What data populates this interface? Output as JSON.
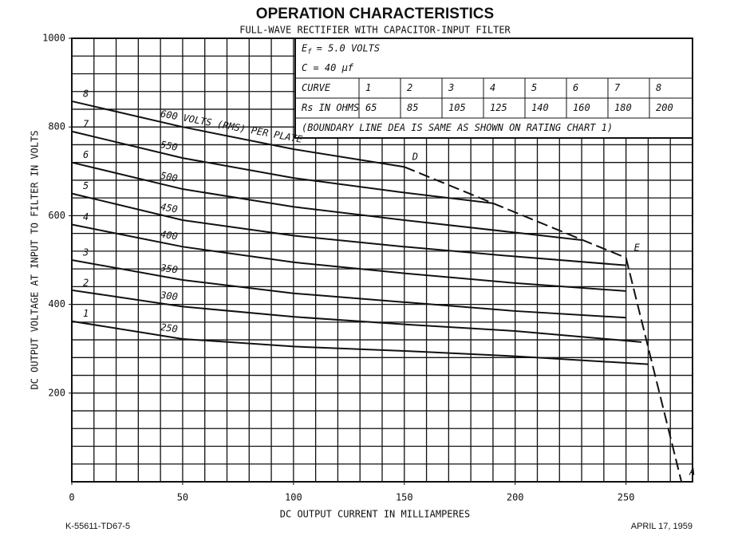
{
  "chart_data": {
    "type": "line",
    "title": "OPERATION CHARACTERISTICS",
    "subtitle": "FULL-WAVE RECTIFIER WITH CAPACITOR-INPUT FILTER",
    "x_label": "DC OUTPUT CURRENT IN MILLIAMPERES",
    "y_label": "DC OUTPUT VOLTAGE AT INPUT TO FILTER IN VOLTS",
    "footer_left": "K-55611-TD67-5",
    "footer_right": "APRIL 17, 1959",
    "xlim": [
      0,
      280
    ],
    "ylim": [
      0,
      1000
    ],
    "xticks": [
      0,
      50,
      100,
      150,
      200,
      250
    ],
    "yticks": [
      200,
      400,
      600,
      800,
      1000
    ],
    "x_grid_step": 10,
    "y_grid_step": 40,
    "grid": true,
    "color": "#111111",
    "series": [
      {
        "name": "600 VOLTS (RMS) PER PLATE",
        "curve": "8",
        "x": [
          0,
          50,
          100,
          150
        ],
        "values": [
          858,
          800,
          750,
          710
        ]
      },
      {
        "name": "550",
        "curve": "7",
        "x": [
          0,
          50,
          100,
          150,
          190
        ],
        "values": [
          790,
          730,
          685,
          652,
          628
        ]
      },
      {
        "name": "500",
        "curve": "6",
        "x": [
          0,
          50,
          100,
          150,
          200,
          230
        ],
        "values": [
          720,
          660,
          620,
          590,
          562,
          545
        ]
      },
      {
        "name": "450",
        "curve": "5",
        "x": [
          0,
          50,
          100,
          150,
          200,
          250
        ],
        "values": [
          650,
          590,
          555,
          530,
          508,
          488
        ]
      },
      {
        "name": "400",
        "curve": "4",
        "x": [
          0,
          50,
          100,
          150,
          200,
          250
        ],
        "values": [
          580,
          530,
          495,
          470,
          448,
          430
        ]
      },
      {
        "name": "350",
        "curve": "3",
        "x": [
          0,
          50,
          100,
          150,
          200,
          250
        ],
        "values": [
          500,
          455,
          425,
          405,
          385,
          370
        ]
      },
      {
        "name": "300",
        "curve": "2",
        "x": [
          0,
          50,
          100,
          150,
          200,
          257
        ],
        "values": [
          432,
          395,
          372,
          355,
          340,
          315
        ]
      },
      {
        "name": "250",
        "curve": "1",
        "x": [
          0,
          50,
          100,
          150,
          200,
          260
        ],
        "values": [
          362,
          322,
          305,
          295,
          283,
          265
        ]
      }
    ],
    "boundary": {
      "dash": true,
      "x": [
        150,
        250,
        275
      ],
      "values": [
        710,
        505,
        0
      ],
      "point_labels": [
        "D",
        "E",
        "A"
      ]
    },
    "inset": {
      "filament": {
        "symbol": "E",
        "subscript": "f",
        "text": "= 5.0 VOLTS"
      },
      "capacitance": "C = 40 μf",
      "table": {
        "rows": [
          [
            "CURVE",
            "1",
            "2",
            "3",
            "4",
            "5",
            "6",
            "7",
            "8"
          ],
          [
            "Rs IN OHMS",
            "65",
            "85",
            "105",
            "125",
            "140",
            "160",
            "180",
            "200"
          ]
        ]
      },
      "note": "(BOUNDARY LINE DEA IS SAME AS SHOWN ON RATING CHART 1)"
    }
  }
}
